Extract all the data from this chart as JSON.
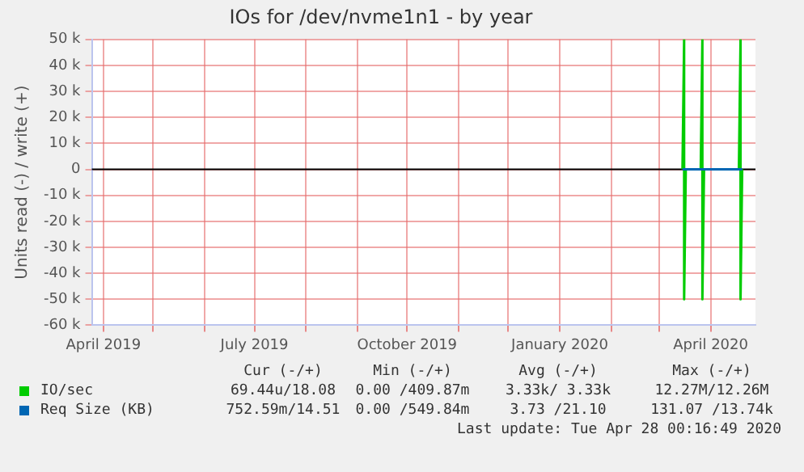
{
  "chart_data": {
    "type": "line",
    "title": "IOs for /dev/nvme1n1 - by year",
    "ylabel": "Units read (-) / write (+)",
    "xlim": [
      "2019-03-25",
      "2020-04-28"
    ],
    "xticks": [
      {
        "value": "2019-04",
        "label": "April 2019"
      },
      {
        "value": "2019-05",
        "label": null
      },
      {
        "value": "2019-06",
        "label": null
      },
      {
        "value": "2019-07",
        "label": "July 2019"
      },
      {
        "value": "2019-08",
        "label": null
      },
      {
        "value": "2019-09",
        "label": null
      },
      {
        "value": "2019-10",
        "label": "October 2019"
      },
      {
        "value": "2019-11",
        "label": null
      },
      {
        "value": "2019-12",
        "label": null
      },
      {
        "value": "2020-01",
        "label": "January 2020"
      },
      {
        "value": "2020-02",
        "label": null
      },
      {
        "value": "2020-03",
        "label": null
      },
      {
        "value": "2020-04",
        "label": "April 2020"
      }
    ],
    "ylim": [
      -60000,
      50000
    ],
    "yticks": [
      {
        "value": -60000,
        "label": "-60 k"
      },
      {
        "value": -50000,
        "label": "-50 k"
      },
      {
        "value": -40000,
        "label": "-40 k"
      },
      {
        "value": -30000,
        "label": "-30 k"
      },
      {
        "value": -20000,
        "label": "-20 k"
      },
      {
        "value": -10000,
        "label": "-10 k"
      },
      0,
      {
        "value": 10000,
        "label": "10 k"
      },
      {
        "value": 20000,
        "label": "20 k"
      },
      {
        "value": 30000,
        "label": "30 k"
      },
      {
        "value": 40000,
        "label": "40 k"
      },
      {
        "value": 50000,
        "label": "50 k"
      }
    ],
    "grid": true,
    "legend": "bottom",
    "marker": "none",
    "line_style": "solid",
    "series": [
      {
        "name": "IO/sec",
        "color": "#00cc00",
        "x": [
          "2020-03-15",
          "2020-03-16",
          "2020-03-16",
          "2020-03-17",
          "2020-03-26",
          "2020-03-27",
          "2020-03-27",
          "2020-03-28",
          "2020-04-02",
          "2020-04-18",
          "2020-04-19",
          "2020-04-19",
          "2020-04-20"
        ],
        "values": [
          0,
          50000,
          -50000,
          0,
          0,
          50000,
          -50000,
          0,
          0,
          0,
          50000,
          -50000,
          0
        ]
      },
      {
        "name": "Req Size (KB)",
        "color": "#0066b3",
        "x": [
          "2020-03-15",
          "2020-03-20",
          "2020-03-27",
          "2020-04-02",
          "2020-04-19",
          "2020-04-20"
        ],
        "values": [
          0,
          0,
          0,
          0,
          0,
          0
        ]
      }
    ],
    "annotations": [
      "Cur (-/+)",
      "Min (-/+)",
      "Avg (-/+)",
      "Max (-/+)",
      "69.44u/18.08",
      "0.00 /409.87m",
      "3.33k/ 3.33k",
      "12.27M/12.26M",
      "752.59m/14.51",
      "0.00 /549.84m",
      "3.73 /21.10",
      "131.07 /13.74k",
      "Last update: Tue Apr 28 00:16:49 2020"
    ]
  }
}
